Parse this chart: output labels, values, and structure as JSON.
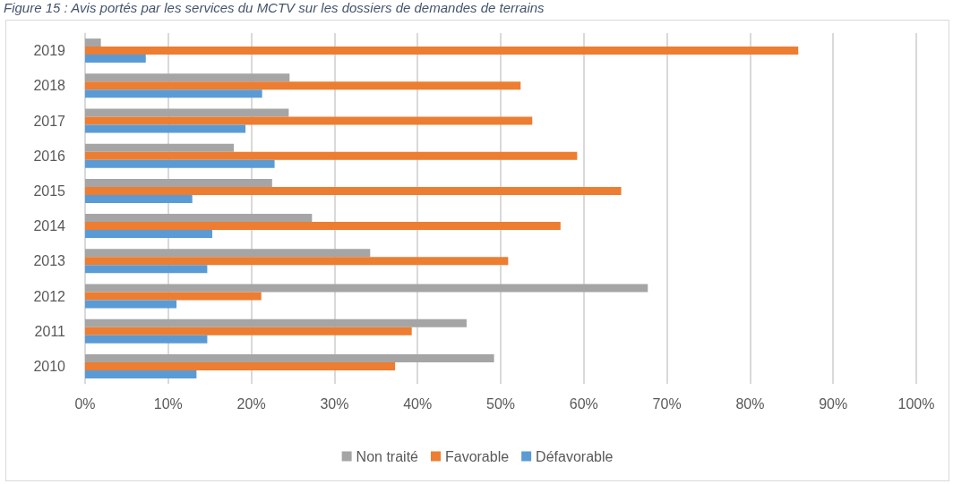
{
  "chart_data": {
    "type": "bar",
    "orientation": "horizontal",
    "title": "Figure 15 : Avis portés par les services du MCTV sur les dossiers de demandes de terrains",
    "categories": [
      "2019",
      "2018",
      "2017",
      "2016",
      "2015",
      "2014",
      "2013",
      "2012",
      "2011",
      "2010"
    ],
    "series": [
      {
        "name": "Non traité",
        "color": "#a5a5a5",
        "values": [
          1.9,
          24.6,
          24.5,
          17.9,
          22.5,
          27.3,
          34.3,
          67.7,
          45.9,
          49.2
        ]
      },
      {
        "name": "Favorable",
        "color": "#ed7d31",
        "values": [
          85.8,
          52.4,
          53.8,
          59.2,
          64.5,
          57.2,
          50.9,
          21.2,
          39.3,
          37.3
        ]
      },
      {
        "name": "Défavorable",
        "color": "#5b9bd5",
        "values": [
          7.3,
          21.3,
          19.3,
          22.8,
          12.9,
          15.3,
          14.7,
          11.0,
          14.7,
          13.4
        ]
      }
    ],
    "xlim": [
      0,
      100
    ],
    "xticks": [
      {
        "value": 0,
        "label": "0%"
      },
      {
        "value": 10,
        "label": "10%"
      },
      {
        "value": 20,
        "label": "20%"
      },
      {
        "value": 30,
        "label": "30%"
      },
      {
        "value": 40,
        "label": "40%"
      },
      {
        "value": 50,
        "label": "50%"
      },
      {
        "value": 60,
        "label": "60%"
      },
      {
        "value": 70,
        "label": "70%"
      },
      {
        "value": 80,
        "label": "80%"
      },
      {
        "value": 90,
        "label": "90%"
      },
      {
        "value": 100,
        "label": "100%"
      }
    ],
    "grid": "x",
    "legend": "bottom"
  }
}
